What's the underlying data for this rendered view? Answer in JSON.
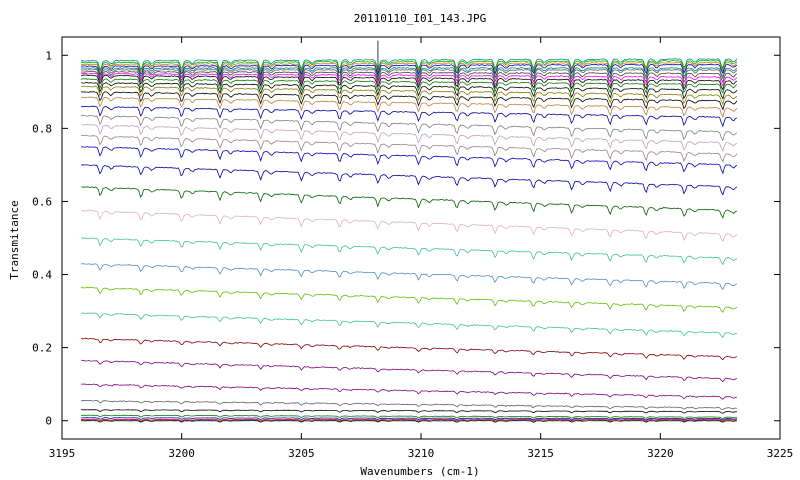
{
  "chart_data": {
    "type": "line",
    "title": "20110110_I01_143.JPG",
    "xlabel": "Wavenumbers (cm-1)",
    "ylabel": "Transmitance",
    "xlim": [
      3195,
      3225
    ],
    "ylim": [
      -0.05,
      1.05
    ],
    "x_domain": [
      3195.8,
      3223.2
    ],
    "grid": false,
    "legend": "none",
    "x_ticks": [
      3195,
      3200,
      3205,
      3210,
      3215,
      3220,
      3225
    ],
    "y_ticks": [
      0,
      0.2,
      0.4,
      0.6,
      0.8,
      1
    ],
    "x_tick_labels": [
      "3195",
      "3200",
      "3205",
      "3210",
      "3215",
      "3220",
      "3225"
    ],
    "y_tick_labels": [
      "0",
      "0.2",
      "0.4",
      "0.6",
      "0.8",
      "1"
    ],
    "absorption_lines": [
      3196.6,
      3198.3,
      3200.0,
      3201.6,
      3203.3,
      3205.0,
      3206.6,
      3208.2,
      3209.9,
      3211.5,
      3213.1,
      3214.7,
      3216.3,
      3217.9,
      3219.4,
      3221.0,
      3222.6
    ],
    "series": [
      {
        "color": "#009090",
        "start": 0.985,
        "end": 0.99
      },
      {
        "color": "#00b000",
        "start": 0.98,
        "end": 0.985
      },
      {
        "color": "#e08000",
        "start": 0.975,
        "end": 0.98
      },
      {
        "color": "#0000c0",
        "start": 0.97,
        "end": 0.975
      },
      {
        "color": "#008080",
        "start": 0.965,
        "end": 0.965
      },
      {
        "color": "#606060",
        "start": 0.96,
        "end": 0.96
      },
      {
        "color": "#404040",
        "start": 0.955,
        "end": 0.95
      },
      {
        "color": "#ff00ff",
        "start": 0.95,
        "end": 0.94
      },
      {
        "color": "#000000",
        "start": 0.945,
        "end": 0.93
      },
      {
        "color": "#008000",
        "start": 0.935,
        "end": 0.92
      },
      {
        "color": "#000000",
        "start": 0.925,
        "end": 0.905
      },
      {
        "color": "#808000",
        "start": 0.915,
        "end": 0.89
      },
      {
        "color": "#000000",
        "start": 0.9,
        "end": 0.875
      },
      {
        "color": "#c08040",
        "start": 0.885,
        "end": 0.855
      },
      {
        "color": "#0000a0",
        "start": 0.86,
        "end": 0.83
      },
      {
        "color": "#808080",
        "start": 0.835,
        "end": 0.79
      },
      {
        "color": "#c0a0c0",
        "start": 0.81,
        "end": 0.76
      },
      {
        "color": "#a08080",
        "start": 0.78,
        "end": 0.73
      },
      {
        "color": "#0000c0",
        "start": 0.75,
        "end": 0.7
      },
      {
        "color": "#0000a0",
        "start": 0.7,
        "end": 0.64
      },
      {
        "color": "#006000",
        "start": 0.64,
        "end": 0.575
      },
      {
        "color": "#e0b0c0",
        "start": 0.575,
        "end": 0.51
      },
      {
        "color": "#40c0a0",
        "start": 0.5,
        "end": 0.445
      },
      {
        "color": "#5090c0",
        "start": 0.43,
        "end": 0.375
      },
      {
        "color": "#60c000",
        "start": 0.365,
        "end": 0.31
      },
      {
        "color": "#40c0a0",
        "start": 0.295,
        "end": 0.24
      },
      {
        "color": "#800000",
        "start": 0.225,
        "end": 0.175
      },
      {
        "color": "#800080",
        "start": 0.165,
        "end": 0.115
      },
      {
        "color": "#800080",
        "start": 0.1,
        "end": 0.065
      },
      {
        "color": "#606060",
        "start": 0.055,
        "end": 0.035
      },
      {
        "color": "#000000",
        "start": 0.03,
        "end": 0.025
      },
      {
        "color": "#008000",
        "start": 0.015,
        "end": 0.01
      },
      {
        "color": "#0000c0",
        "start": 0.008,
        "end": 0.006
      },
      {
        "color": "#c00000",
        "start": 0.003,
        "end": 0.003
      },
      {
        "color": "#000000",
        "start": 0.0,
        "end": 0.0
      }
    ]
  }
}
